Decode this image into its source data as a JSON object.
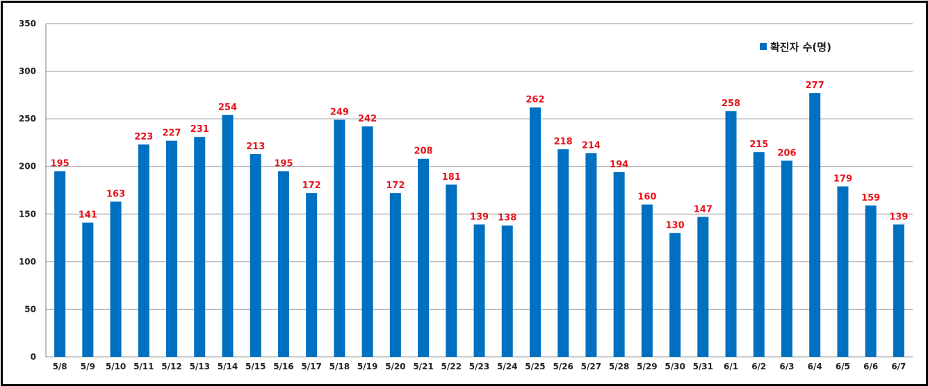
{
  "chart_data": {
    "type": "bar",
    "categories": [
      "5/8",
      "5/9",
      "5/10",
      "5/11",
      "5/12",
      "5/13",
      "5/14",
      "5/15",
      "5/16",
      "5/17",
      "5/18",
      "5/19",
      "5/20",
      "5/21",
      "5/22",
      "5/23",
      "5/24",
      "5/25",
      "5/26",
      "5/27",
      "5/28",
      "5/29",
      "5/30",
      "5/31",
      "6/1",
      "6/2",
      "6/3",
      "6/4",
      "6/5",
      "6/6",
      "6/7"
    ],
    "series": [
      {
        "name": "확진자 수(명)",
        "values": [
          195,
          141,
          163,
          223,
          227,
          231,
          254,
          213,
          195,
          172,
          249,
          242,
          172,
          208,
          181,
          139,
          138,
          262,
          218,
          214,
          194,
          160,
          130,
          147,
          258,
          215,
          206,
          277,
          179,
          159,
          139
        ]
      }
    ],
    "ylim": [
      0,
      350
    ],
    "yticks": [
      0,
      50,
      100,
      150,
      200,
      250,
      300,
      350
    ],
    "grid": true,
    "legend_position": "top-right",
    "bar_color": "#0070c0",
    "label_color": "#e8141c"
  }
}
